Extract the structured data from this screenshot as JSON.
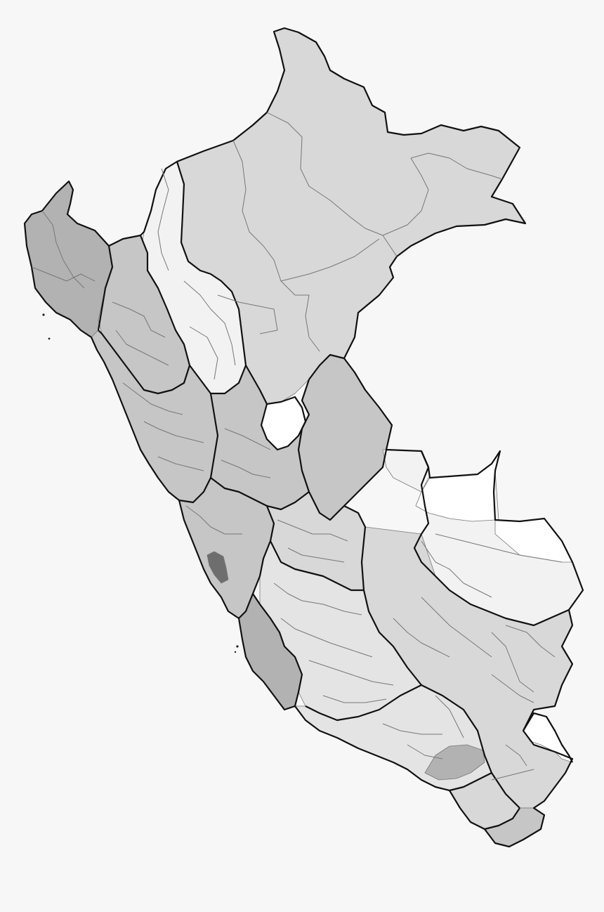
{
  "map": {
    "background": "#f7f7f7",
    "outline_color": "#111111",
    "province_line_color": "#777777",
    "shades": {
      "lightest": "#ffffff",
      "very_light": "#f2f2f2",
      "light": "#e4e4e4",
      "light_medium": "#d8d8d8",
      "medium": "#c6c6c6",
      "medium_dark": "#b2b2b2",
      "dark": "#8e8e8e",
      "darkest": "#6e6e6e"
    }
  }
}
